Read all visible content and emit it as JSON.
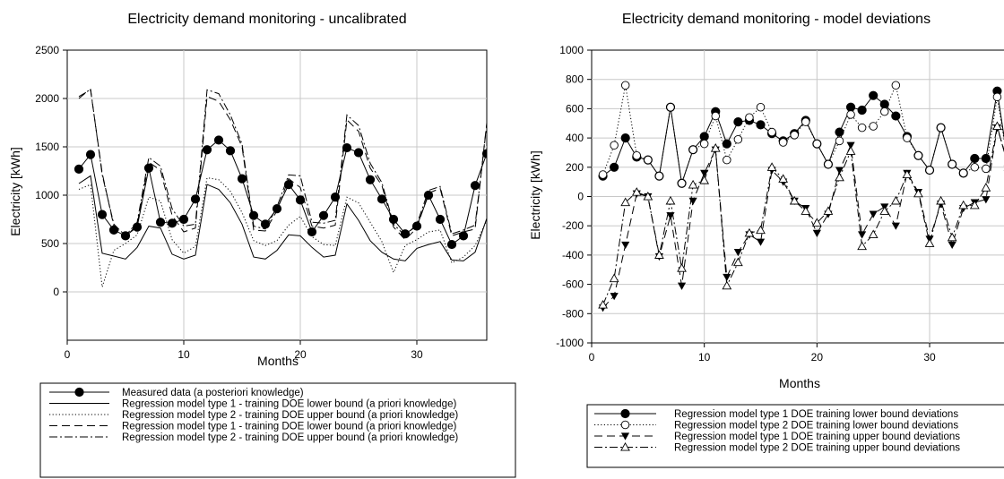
{
  "chart_data": [
    {
      "type": "line",
      "title": "Electricity demand monitoring - uncalibrated",
      "xlabel": "Months",
      "ylabel": "Electricity [kWh]",
      "xlim": [
        0,
        36
      ],
      "ylim": [
        -500,
        2500
      ],
      "xticks": [
        0,
        10,
        20,
        30
      ],
      "yticks": [
        0,
        500,
        1000,
        1500,
        2000,
        2500
      ],
      "grid": true,
      "legend_position": "bottom",
      "x": [
        1,
        2,
        3,
        4,
        5,
        6,
        7,
        8,
        9,
        10,
        11,
        12,
        13,
        14,
        15,
        16,
        17,
        18,
        19,
        20,
        21,
        22,
        23,
        24,
        25,
        26,
        27,
        28,
        29,
        30,
        31,
        32,
        33,
        34,
        35,
        36
      ],
      "series": [
        {
          "name": "Measured data (a posteriori knowledge)",
          "style": "solid-circle",
          "values": [
            1270,
            1420,
            800,
            640,
            580,
            670,
            1280,
            720,
            710,
            750,
            960,
            1470,
            1570,
            1460,
            1170,
            790,
            700,
            860,
            1110,
            950,
            620,
            790,
            980,
            1490,
            1440,
            1160,
            960,
            750,
            600,
            680,
            1000,
            750,
            490,
            580,
            1100,
            1430
          ]
        },
        {
          "name": "Regression model type 1 - training DOE lower bound (a priori knowledge)",
          "style": "solid",
          "values": [
            1120,
            1200,
            400,
            370,
            340,
            460,
            680,
            660,
            390,
            340,
            380,
            1110,
            1060,
            920,
            700,
            360,
            340,
            430,
            590,
            580,
            460,
            360,
            380,
            910,
            740,
            530,
            410,
            340,
            320,
            450,
            490,
            520,
            330,
            320,
            410,
            760
          ]
        },
        {
          "name": "Regression model type 2 - training DOE upper bound (a priori knowledge)",
          "style": "dotted",
          "values": [
            1060,
            1110,
            50,
            430,
            500,
            590,
            980,
            940,
            540,
            400,
            470,
            1180,
            1160,
            1040,
            820,
            530,
            480,
            530,
            690,
            780,
            570,
            490,
            480,
            980,
            920,
            720,
            520,
            200,
            480,
            540,
            620,
            640,
            300,
            360,
            480,
            740
          ]
        },
        {
          "name": "Regression model type 1 - training DOE lower bound (a priori knowledge)",
          "style": "dashed",
          "values": [
            2020,
            2090,
            1230,
            680,
            560,
            700,
            1340,
            1260,
            790,
            620,
            660,
            2020,
            1970,
            1780,
            1500,
            640,
            630,
            840,
            1170,
            1080,
            680,
            660,
            690,
            1780,
            1660,
            1280,
            1100,
            670,
            540,
            660,
            1020,
            1070,
            580,
            620,
            650,
            1750
          ]
        },
        {
          "name": "Regression model type 2 - training DOE upper bound (a priori knowledge)",
          "style": "dashdot",
          "values": [
            2000,
            2100,
            1210,
            700,
            580,
            720,
            1390,
            1300,
            860,
            680,
            700,
            2090,
            2050,
            1830,
            1530,
            680,
            650,
            880,
            1210,
            1200,
            720,
            710,
            740,
            1830,
            1720,
            1330,
            1130,
            700,
            580,
            700,
            1050,
            1090,
            600,
            640,
            690,
            1730
          ]
        }
      ]
    },
    {
      "type": "line",
      "title": "Electricity demand monitoring - model deviations",
      "xlabel": "Months",
      "ylabel": "Electricity [kWh]",
      "xlim": [
        0,
        37
      ],
      "ylim": [
        -1000,
        1000
      ],
      "xticks": [
        0,
        10,
        20,
        30
      ],
      "yticks": [
        -1000,
        -800,
        -600,
        -400,
        -200,
        0,
        200,
        400,
        600,
        800,
        1000
      ],
      "grid": true,
      "legend_position": "bottom",
      "x": [
        1,
        2,
        3,
        4,
        5,
        6,
        7,
        8,
        9,
        10,
        11,
        12,
        13,
        14,
        15,
        16,
        17,
        18,
        19,
        20,
        21,
        22,
        23,
        24,
        25,
        26,
        27,
        28,
        29,
        30,
        31,
        32,
        33,
        34,
        35,
        36,
        37
      ],
      "series": [
        {
          "name": "Regression model type 1 DOE training lower bound deviations",
          "style": "solid-circle",
          "values": [
            140,
            200,
            400,
            270,
            250,
            140,
            610,
            90,
            320,
            410,
            580,
            360,
            510,
            520,
            490,
            430,
            380,
            430,
            520,
            360,
            220,
            440,
            610,
            590,
            690,
            630,
            550,
            410,
            280,
            180,
            470,
            220,
            160,
            260,
            260,
            720,
            210
          ]
        },
        {
          "name": "Regression model type 2 DOE training lower bound deviations",
          "style": "dotted-open-circle",
          "values": [
            150,
            350,
            760,
            280,
            250,
            140,
            610,
            90,
            320,
            360,
            550,
            250,
            390,
            540,
            610,
            440,
            370,
            420,
            510,
            360,
            220,
            380,
            560,
            470,
            480,
            580,
            760,
            400,
            280,
            180,
            470,
            220,
            160,
            200,
            190,
            680,
            200
          ]
        },
        {
          "name": "Regression model type 1 DOE training upper bound deviations",
          "style": "dashed-down-triangle",
          "values": [
            -760,
            -680,
            -330,
            20,
            0,
            -410,
            -130,
            -610,
            -30,
            160,
            320,
            -550,
            -380,
            -260,
            -310,
            180,
            100,
            -30,
            -80,
            -250,
            -120,
            180,
            350,
            -260,
            -120,
            -70,
            -200,
            160,
            30,
            -290,
            -50,
            -330,
            -80,
            -40,
            -20,
            470,
            220
          ]
        },
        {
          "name": "Regression model type 2 DOE training upper bound deviations",
          "style": "dashdot-open-triangle",
          "values": [
            -740,
            -560,
            -40,
            30,
            0,
            -400,
            -30,
            -490,
            80,
            110,
            330,
            -610,
            -450,
            -250,
            -230,
            200,
            120,
            -30,
            -100,
            -180,
            -100,
            130,
            310,
            -340,
            -260,
            -100,
            -30,
            150,
            20,
            -320,
            -30,
            -280,
            -60,
            -60,
            60,
            480,
            200
          ]
        }
      ]
    }
  ]
}
